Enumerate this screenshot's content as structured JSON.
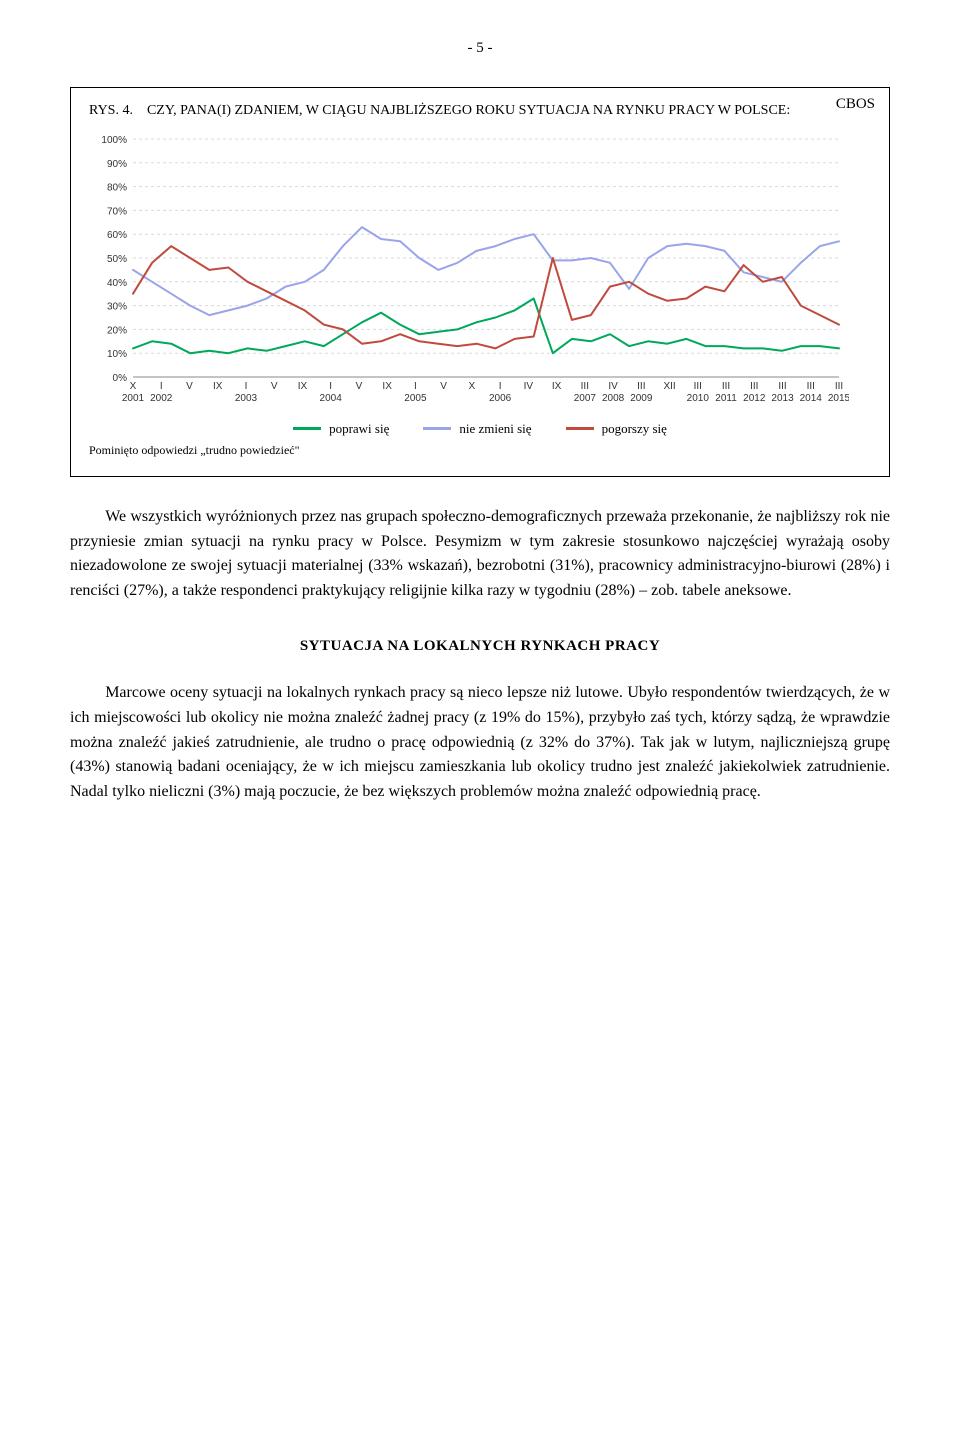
{
  "page_number": "- 5 -",
  "chart": {
    "box_label": "CBOS",
    "rys_label": "RYS. 4.",
    "title": "CZY, PANA(I) ZDANIEM, W CIĄGU NAJBLIŻSZEGO ROKU SYTUACJA NA RYNKU PRACY W POLSCE:",
    "type": "line",
    "ylim": [
      0,
      100
    ],
    "ytick_step": 10,
    "y_suffix": "%",
    "background_color": "#ffffff",
    "grid_color": "#d9d9d9",
    "line_width": 2,
    "x_labels_top": [
      "X",
      "I",
      "V",
      "IX",
      "I",
      "V",
      "IX",
      "I",
      "V",
      "IX",
      "I",
      "V",
      "X",
      "I",
      "IV",
      "IX",
      "III",
      "IV",
      "III",
      "XII",
      "III",
      "III",
      "III",
      "III",
      "III",
      "III"
    ],
    "x_labels_year": [
      "2001",
      "2002",
      "",
      "",
      "2003",
      "",
      "",
      "2004",
      "",
      "",
      "2005",
      "",
      "",
      "2006",
      "",
      "",
      "2007",
      "2008",
      "2009",
      "",
      "2010",
      "2011",
      "2012",
      "2013",
      "2014",
      "2015"
    ],
    "series": [
      {
        "name": "poprawi się",
        "color": "#00a859",
        "values": [
          12,
          15,
          14,
          10,
          11,
          10,
          12,
          11,
          13,
          15,
          13,
          18,
          23,
          27,
          22,
          18,
          19,
          20,
          23,
          25,
          28,
          33,
          10,
          16,
          15,
          18,
          13,
          15,
          14,
          16,
          13,
          13,
          12,
          12,
          11,
          13,
          13,
          12
        ]
      },
      {
        "name": "nie zmieni się",
        "color": "#9aa4e8",
        "values": [
          45,
          40,
          35,
          30,
          26,
          28,
          30,
          33,
          38,
          40,
          45,
          55,
          63,
          58,
          57,
          50,
          45,
          48,
          53,
          55,
          58,
          60,
          49,
          49,
          50,
          48,
          37,
          50,
          55,
          56,
          55,
          53,
          44,
          42,
          40,
          48,
          55,
          57
        ]
      },
      {
        "name": "pogorszy się",
        "color": "#c04a3e",
        "values": [
          35,
          48,
          55,
          50,
          45,
          46,
          40,
          36,
          32,
          28,
          22,
          20,
          14,
          15,
          18,
          15,
          14,
          13,
          14,
          12,
          16,
          17,
          50,
          24,
          26,
          38,
          40,
          35,
          32,
          33,
          38,
          36,
          47,
          40,
          42,
          30,
          26,
          22
        ]
      }
    ],
    "legend": {
      "items": [
        "poprawi się",
        "nie zmieni się",
        "pogorszy się"
      ]
    },
    "footnote": "Pominięto odpowiedzi „trudno powiedzieć\""
  },
  "paragraph1": "We wszystkich wyróżnionych przez nas grupach społeczno-demograficznych przeważa przekonanie, że najbliższy rok nie przyniesie zmian sytuacji na rynku pracy w Polsce. Pesymizm w tym zakresie stosunkowo najczęściej wyrażają osoby niezadowolone ze swojej sytuacji materialnej (33% wskazań), bezrobotni (31%), pracownicy administracyjno-biurowi (28%) i renciści (27%), a także respondenci praktykujący religijnie kilka razy w tygodniu (28%) – zob. tabele aneksowe.",
  "section_heading": "SYTUACJA NA LOKALNYCH RYNKACH PRACY",
  "paragraph2": "Marcowe oceny sytuacji na lokalnych rynkach pracy są nieco lepsze niż lutowe. Ubyło respondentów twierdzących, że w ich miejscowości lub okolicy nie można znaleźć żadnej pracy (z 19% do 15%), przybyło zaś tych, którzy sądzą, że wprawdzie można znaleźć jakieś zatrudnienie, ale trudno o pracę odpowiednią (z 32% do 37%). Tak jak w lutym, najliczniejszą grupę (43%) stanowią badani oceniający, że w ich miejscu zamieszkania lub okolicy trudno jest znaleźć jakiekolwiek zatrudnienie. Nadal tylko nieliczni (3%) mają poczucie, że bez większych problemów można znaleźć odpowiednią pracę."
}
